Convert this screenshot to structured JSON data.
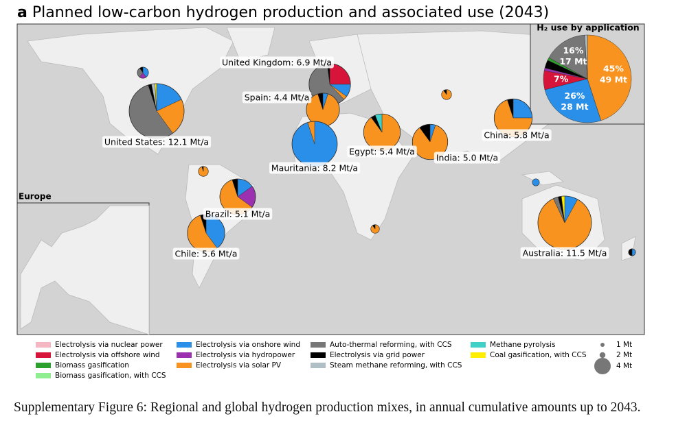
{
  "title_letter": "a",
  "title": "Planned low-carbon hydrogen production and associated use (2043)",
  "technologies": [
    {
      "name": "Electrolysis via nuclear power",
      "color": "#f4b6c2"
    },
    {
      "name": "Electrolysis via offshore wind",
      "color": "#d7153a"
    },
    {
      "name": "Biomass gasification",
      "color": "#2ca02c"
    },
    {
      "name": "Biomass gasification, with CCS",
      "color": "#90ee90"
    },
    {
      "name": "Electrolysis via onshore wind",
      "color": "#2a8fe8"
    },
    {
      "name": "Electrolysis via hydropower",
      "color": "#9b30b0"
    },
    {
      "name": "Electrolysis via solar PV",
      "color": "#f7931e"
    },
    {
      "name": "Auto-thermal reforming, with CCS",
      "color": "#777777"
    },
    {
      "name": "Electrolysis via grid power",
      "color": "#000000"
    },
    {
      "name": "Steam methane reforming, with CCS",
      "color": "#b0bec5"
    },
    {
      "name": "Methane pyrolysis",
      "color": "#40d0c8"
    },
    {
      "name": "Coal gasification, with CCS",
      "color": "#ffee00"
    }
  ],
  "size_legend": [
    {
      "value": 1,
      "label": "1 Mt"
    },
    {
      "value": 2,
      "label": "2 Mt"
    },
    {
      "value": 4,
      "label": "4 Mt"
    }
  ],
  "regions": [
    {
      "label": "United States: 12.1 Mt/a",
      "total": 12.1,
      "shares": [
        0,
        0,
        0,
        0,
        18,
        0,
        22,
        55,
        2,
        2,
        0,
        1
      ]
    },
    {
      "label": "United Kingdom: 6.9 Mt/a",
      "total": 6.9,
      "shares": [
        0,
        25,
        0,
        0,
        10,
        0,
        3,
        60,
        2,
        0,
        0,
        0
      ]
    },
    {
      "label": "Spain: 4.4 Mt/a",
      "total": 4.4,
      "shares": [
        0,
        0,
        0,
        0,
        5,
        0,
        90,
        0,
        5,
        0,
        0,
        0
      ]
    },
    {
      "label": "Mauritania: 8.2 Mt/a",
      "total": 8.2,
      "shares": [
        0,
        0,
        0,
        0,
        95,
        0,
        5,
        0,
        0,
        0,
        0,
        0
      ]
    },
    {
      "label": "Egypt: 5.4 Mt/a",
      "total": 5.4,
      "shares": [
        0,
        0,
        0,
        0,
        0,
        0,
        90,
        0,
        4,
        0,
        6,
        0
      ]
    },
    {
      "label": "India: 5.0 Mt/a",
      "total": 5.0,
      "shares": [
        0,
        0,
        0,
        0,
        5,
        0,
        85,
        0,
        10,
        0,
        0,
        0
      ]
    },
    {
      "label": "China: 5.8 Mt/a",
      "total": 5.8,
      "shares": [
        0,
        0,
        0,
        0,
        25,
        0,
        70,
        0,
        5,
        0,
        0,
        0
      ]
    },
    {
      "label": "Brazil: 5.1 Mt/a",
      "total": 5.1,
      "shares": [
        0,
        0,
        0,
        0,
        15,
        20,
        60,
        0,
        5,
        0,
        0,
        0
      ]
    },
    {
      "label": "Chile: 5.6 Mt/a",
      "total": 5.6,
      "shares": [
        0,
        0,
        0,
        0,
        40,
        0,
        55,
        0,
        5,
        0,
        0,
        0
      ]
    },
    {
      "label": "Australia: 11.5 Mt/a",
      "total": 11.5,
      "shares": [
        0,
        0,
        0,
        0,
        8,
        0,
        85,
        3,
        2,
        0,
        0,
        2
      ]
    }
  ],
  "other_sites": [
    {
      "total": 0.5,
      "shares": [
        0,
        0,
        0,
        0,
        40,
        20,
        0,
        30,
        10,
        0,
        0,
        0
      ]
    },
    {
      "total": 0.3,
      "shares": [
        0,
        0,
        0,
        0,
        0,
        0,
        90,
        0,
        10,
        0,
        0,
        0
      ]
    },
    {
      "total": 0.4,
      "shares": [
        0,
        0,
        0,
        0,
        0,
        0,
        95,
        0,
        5,
        0,
        0,
        0
      ]
    },
    {
      "total": 0.4,
      "shares": [
        0,
        0,
        0,
        0,
        0,
        0,
        90,
        0,
        10,
        0,
        0,
        0
      ]
    },
    {
      "total": 0.2,
      "shares": [
        0,
        0,
        0,
        0,
        100,
        0,
        0,
        0,
        0,
        0,
        0,
        0
      ]
    },
    {
      "total": 0.2,
      "shares": [
        0,
        0,
        0,
        0,
        50,
        0,
        0,
        0,
        50,
        0,
        0,
        0
      ]
    }
  ],
  "europe_inset_title": "Europe",
  "use_inset": {
    "title": "H₂ use by application",
    "slices": [
      {
        "value": 45,
        "label": "45%",
        "mt_label": "49 Mt",
        "color": "#f7931e"
      },
      {
        "value": 26,
        "label": "26%",
        "mt_label": "28 Mt",
        "color": "#2a8fe8"
      },
      {
        "value": 7,
        "label": "7%",
        "color": "#d7153a"
      },
      {
        "value": 1,
        "color": "#9b30b0"
      },
      {
        "value": 3,
        "color": "#000000"
      },
      {
        "value": 1,
        "color": "#2ca02c"
      },
      {
        "value": 16,
        "label": "16%",
        "mt_label": "17 Mt",
        "color": "#777777"
      },
      {
        "value": 1,
        "color": "#b0bec5"
      }
    ]
  },
  "caption": "Supplementary Figure 6: Regional and global hydrogen production mixes, in annual cumulative amounts up to 2043."
}
